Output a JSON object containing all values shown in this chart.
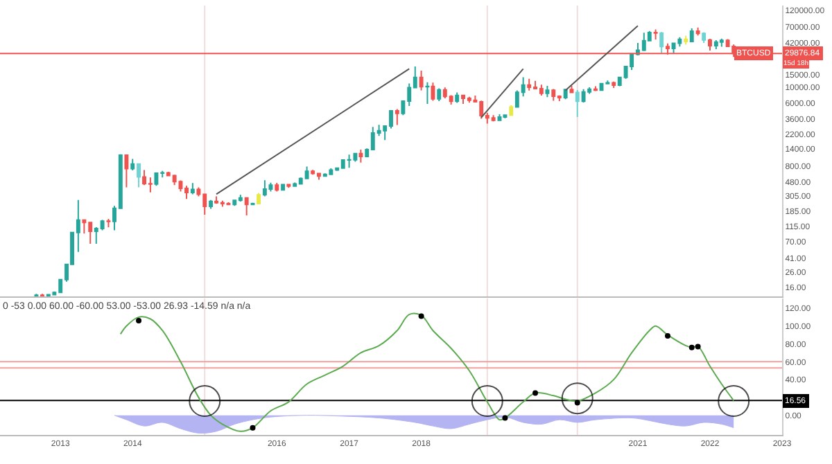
{
  "chart_data": [
    {
      "type": "candlestick",
      "tick_labels": "y",
      "log": "y",
      "xlim": [
        "2012-03",
        "2023-01"
      ],
      "ylim": [
        11.8,
        140000
      ],
      "yticks": [
        {
          "value": 16,
          "label": "16.00"
        },
        {
          "value": 26,
          "label": "26.00"
        },
        {
          "value": 41,
          "label": "41.00"
        },
        {
          "value": 70,
          "label": "70.00"
        },
        {
          "value": 115,
          "label": "115.00"
        },
        {
          "value": 185,
          "label": "185.00"
        },
        {
          "value": 305,
          "label": "305.00"
        },
        {
          "value": 480,
          "label": "480.00"
        },
        {
          "value": 800,
          "label": "800.00"
        },
        {
          "value": 1400,
          "label": "1400.00"
        },
        {
          "value": 2200,
          "label": "2200.00"
        },
        {
          "value": 3600,
          "label": "3600.00"
        },
        {
          "value": 6000,
          "label": "6000.00"
        },
        {
          "value": 10000,
          "label": "10000.00"
        },
        {
          "value": 15000,
          "label": "15000.00"
        },
        {
          "value": 42000,
          "label": "42000.00"
        },
        {
          "value": 70000,
          "label": "70000.00"
        },
        {
          "value": 120000,
          "label": "120000.00"
        }
      ],
      "x": [
        "2012-09",
        "2012-10",
        "2012-11",
        "2012-12",
        "2013-01",
        "2013-02",
        "2013-03",
        "2013-04",
        "2013-05",
        "2013-06",
        "2013-07",
        "2013-08",
        "2013-09",
        "2013-10",
        "2013-11",
        "2013-12",
        "2014-01",
        "2014-02",
        "2014-03",
        "2014-04",
        "2014-05",
        "2014-06",
        "2014-07",
        "2014-08",
        "2014-09",
        "2014-10",
        "2014-11",
        "2014-12",
        "2015-01",
        "2015-02",
        "2015-03",
        "2015-04",
        "2015-05",
        "2015-06",
        "2015-07",
        "2015-08",
        "2015-09",
        "2015-10",
        "2015-11",
        "2015-12",
        "2016-01",
        "2016-02",
        "2016-03",
        "2016-04",
        "2016-05",
        "2016-06",
        "2016-07",
        "2016-08",
        "2016-09",
        "2016-10",
        "2016-11",
        "2016-12",
        "2017-01",
        "2017-02",
        "2017-03",
        "2017-04",
        "2017-05",
        "2017-06",
        "2017-07",
        "2017-08",
        "2017-09",
        "2017-10",
        "2017-11",
        "2017-12",
        "2018-01",
        "2018-02",
        "2018-03",
        "2018-04",
        "2018-05",
        "2018-06",
        "2018-07",
        "2018-08",
        "2018-09",
        "2018-10",
        "2018-11",
        "2018-12",
        "2019-01",
        "2019-02",
        "2019-03",
        "2019-04",
        "2019-05",
        "2019-06",
        "2019-07",
        "2019-08",
        "2019-09",
        "2019-10",
        "2019-11",
        "2019-12",
        "2020-01",
        "2020-02",
        "2020-03",
        "2020-04",
        "2020-05",
        "2020-06",
        "2020-07",
        "2020-08",
        "2020-09",
        "2020-10",
        "2020-11",
        "2020-12",
        "2021-01",
        "2021-02",
        "2021-03",
        "2021-04",
        "2021-05",
        "2021-06",
        "2021-07",
        "2021-08",
        "2021-09",
        "2021-10",
        "2021-11",
        "2021-12",
        "2022-01",
        "2022-02",
        "2022-03",
        "2022-04",
        "2022-05"
      ],
      "ohlc": [
        [
          10.2,
          12.9,
          10.1,
          12.4
        ],
        [
          12.4,
          12.9,
          10.5,
          11.2
        ],
        [
          11.2,
          12.6,
          10.4,
          12.6
        ],
        [
          12.6,
          13.9,
          12.5,
          13.5
        ],
        [
          13.5,
          20.4,
          13.2,
          20.4
        ],
        [
          20.4,
          33.4,
          19.1,
          33.4
        ],
        [
          33.4,
          95,
          33,
          93
        ],
        [
          93,
          266,
          50,
          139
        ],
        [
          139,
          140,
          90,
          129
        ],
        [
          129,
          130,
          65,
          97
        ],
        [
          97,
          111,
          65,
          106
        ],
        [
          106,
          140,
          100,
          135
        ],
        [
          135,
          145,
          110,
          133
        ],
        [
          133,
          220,
          100,
          204
        ],
        [
          204,
          1160,
          203,
          1128
        ],
        [
          1128,
          1150,
          400,
          730
        ],
        [
          730,
          1000,
          690,
          850
        ],
        [
          850,
          850,
          400,
          560
        ],
        [
          560,
          700,
          430,
          450
        ],
        [
          450,
          550,
          340,
          445
        ],
        [
          445,
          630,
          420,
          630
        ],
        [
          630,
          680,
          550,
          640
        ],
        [
          640,
          660,
          570,
          585
        ],
        [
          585,
          600,
          430,
          480
        ],
        [
          480,
          500,
          350,
          387
        ],
        [
          387,
          420,
          275,
          338
        ],
        [
          338,
          460,
          320,
          375
        ],
        [
          375,
          400,
          300,
          320
        ],
        [
          320,
          320,
          166,
          217
        ],
        [
          217,
          266,
          200,
          254
        ],
        [
          254,
          300,
          235,
          244
        ],
        [
          244,
          260,
          214,
          236
        ],
        [
          236,
          247,
          225,
          230
        ],
        [
          230,
          268,
          220,
          263
        ],
        [
          263,
          315,
          253,
          284
        ],
        [
          284,
          286,
          162,
          230
        ],
        [
          230,
          244,
          225,
          236
        ],
        [
          236,
          332,
          236,
          314
        ],
        [
          314,
          503,
          300,
          378
        ],
        [
          378,
          466,
          350,
          430
        ],
        [
          430,
          462,
          350,
          368
        ],
        [
          368,
          448,
          366,
          437
        ],
        [
          437,
          440,
          394,
          416
        ],
        [
          416,
          467,
          413,
          448
        ],
        [
          448,
          550,
          440,
          531
        ],
        [
          531,
          780,
          525,
          673
        ],
        [
          673,
          704,
          600,
          624
        ],
        [
          624,
          626,
          510,
          574
        ],
        [
          574,
          628,
          570,
          609
        ],
        [
          609,
          740,
          605,
          700
        ],
        [
          700,
          754,
          680,
          742
        ],
        [
          742,
          975,
          740,
          963
        ],
        [
          963,
          1150,
          750,
          970
        ],
        [
          970,
          1210,
          915,
          1190
        ],
        [
          1190,
          1350,
          890,
          1080
        ],
        [
          1080,
          1400,
          1080,
          1350
        ],
        [
          1350,
          2800,
          1340,
          2300
        ],
        [
          2300,
          3000,
          2100,
          2480
        ],
        [
          2480,
          2930,
          1830,
          2875
        ],
        [
          2875,
          4750,
          2670,
          4700
        ],
        [
          4700,
          4980,
          2980,
          4340
        ],
        [
          4340,
          6470,
          4100,
          6450
        ],
        [
          6450,
          11400,
          5500,
          9950
        ],
        [
          9950,
          19700,
          9800,
          13850
        ],
        [
          13850,
          17200,
          9100,
          10220
        ],
        [
          10220,
          11800,
          5900,
          10320
        ],
        [
          10320,
          11700,
          6500,
          6920
        ],
        [
          6920,
          9750,
          6450,
          9240
        ],
        [
          9240,
          10000,
          7050,
          7490
        ],
        [
          7490,
          7770,
          5750,
          6390
        ],
        [
          6390,
          8500,
          6100,
          7730
        ],
        [
          7730,
          7760,
          5880,
          7020
        ],
        [
          7020,
          7410,
          6110,
          6630
        ],
        [
          6630,
          7680,
          6200,
          6310
        ],
        [
          6310,
          6550,
          3650,
          4020
        ],
        [
          4020,
          4400,
          3120,
          3740
        ],
        [
          3740,
          4100,
          3350,
          3460
        ],
        [
          3460,
          4200,
          3380,
          3850
        ],
        [
          3850,
          4150,
          3700,
          4100
        ],
        [
          4100,
          5640,
          4050,
          5320
        ],
        [
          5320,
          9100,
          5300,
          8570
        ],
        [
          8570,
          13880,
          7500,
          10820
        ],
        [
          10820,
          13200,
          9060,
          10080
        ],
        [
          10080,
          12330,
          9400,
          9590
        ],
        [
          9590,
          10950,
          7700,
          8290
        ],
        [
          8290,
          10540,
          7300,
          9150
        ],
        [
          9150,
          9500,
          6500,
          7540
        ],
        [
          7540,
          7750,
          6430,
          7190
        ],
        [
          7190,
          9580,
          6850,
          9350
        ],
        [
          9350,
          10500,
          8450,
          8530
        ],
        [
          8530,
          9190,
          3850,
          6410
        ],
        [
          6410,
          9470,
          6150,
          8630
        ],
        [
          8630,
          10080,
          8120,
          9450
        ],
        [
          9450,
          10400,
          8900,
          9140
        ],
        [
          9140,
          11450,
          8980,
          11330
        ],
        [
          11330,
          12470,
          11100,
          11650
        ],
        [
          11650,
          12090,
          9850,
          10780
        ],
        [
          10780,
          14100,
          10370,
          13800
        ],
        [
          13800,
          19900,
          13200,
          19700
        ],
        [
          19700,
          29300,
          17600,
          28990
        ],
        [
          28990,
          41950,
          28130,
          33110
        ],
        [
          33110,
          58350,
          32300,
          45140
        ],
        [
          45140,
          61780,
          45000,
          58800
        ],
        [
          58800,
          64850,
          47000,
          57700
        ],
        [
          57700,
          59500,
          30000,
          37300
        ],
        [
          37300,
          41300,
          28800,
          35040
        ],
        [
          35040,
          42300,
          29300,
          41460
        ],
        [
          41460,
          50500,
          37300,
          47100
        ],
        [
          47100,
          52900,
          39600,
          43790
        ],
        [
          43790,
          67000,
          43300,
          61300
        ],
        [
          61300,
          69000,
          53250,
          56950
        ],
        [
          56950,
          59100,
          42000,
          46200
        ],
        [
          46200,
          48000,
          32900,
          38480
        ],
        [
          38480,
          45800,
          34300,
          43160
        ],
        [
          43160,
          48200,
          37200,
          45510
        ],
        [
          45510,
          47440,
          37600,
          37630
        ],
        [
          37630,
          40000,
          26700,
          29876.84
        ]
      ],
      "colors": [
        "#26a69a",
        "#ef5350",
        "#26a69a",
        "#26a69a",
        "#26a69a",
        "#26a69a",
        "#26a69a",
        "#26a69a",
        "#ef5350",
        "#ef5350",
        "#26a69a",
        "#26a69a",
        "#ef5350",
        "#26a69a",
        "#26a69a",
        "#ef5350",
        "#26a69a",
        "#6fd3d3",
        "#ef5350",
        "#ef5350",
        "#26a69a",
        "#26a69a",
        "#ef5350",
        "#ef5350",
        "#ef5350",
        "#ef5350",
        "#26a69a",
        "#ef5350",
        "#ef5350",
        "#26a69a",
        "#ef5350",
        "#ef5350",
        "#ef5350",
        "#26a69a",
        "#26a69a",
        "#ef5350",
        "#26a69a",
        "#e8e84a",
        "#26a69a",
        "#26a69a",
        "#ef5350",
        "#26a69a",
        "#ef5350",
        "#26a69a",
        "#26a69a",
        "#26a69a",
        "#ef5350",
        "#ef5350",
        "#26a69a",
        "#26a69a",
        "#26a69a",
        "#26a69a",
        "#26a69a",
        "#26a69a",
        "#ef5350",
        "#26a69a",
        "#26a69a",
        "#26a69a",
        "#26a69a",
        "#26a69a",
        "#ef5350",
        "#26a69a",
        "#26a69a",
        "#26a69a",
        "#ef5350",
        "#26a69a",
        "#ef5350",
        "#26a69a",
        "#ef5350",
        "#ef5350",
        "#26a69a",
        "#ef5350",
        "#ef5350",
        "#ef5350",
        "#ef5350",
        "#ef5350",
        "#ef5350",
        "#26a69a",
        "#26a69a",
        "#e8e84a",
        "#26a69a",
        "#26a69a",
        "#ef5350",
        "#ef5350",
        "#ef5350",
        "#26a69a",
        "#ef5350",
        "#ef5350",
        "#26a69a",
        "#ef5350",
        "#6fd3d3",
        "#26a69a",
        "#26a69a",
        "#ef5350",
        "#26a69a",
        "#26a69a",
        "#ef5350",
        "#26a69a",
        "#26a69a",
        "#26a69a",
        "#26a69a",
        "#26a69a",
        "#26a69a",
        "#ef5350",
        "#6fd3d3",
        "#ef5350",
        "#26a69a",
        "#26a69a",
        "#e8e84a",
        "#26a69a",
        "#ef5350",
        "#6fd3d3",
        "#ef5350",
        "#26a69a",
        "#26a69a",
        "#ef5350",
        "#ef5350"
      ],
      "series": [
        {
          "type": "line",
          "color": "#555555",
          "x": [
            "2015-03",
            "2017-11"
          ],
          "values": [
            321,
            18200
          ]
        },
        {
          "type": "line",
          "color": "#555555",
          "x": [
            "2018-11",
            "2019-06"
          ],
          "values": [
            3800,
            18200
          ]
        },
        {
          "type": "line",
          "color": "#555555",
          "x": [
            "2020-01",
            "2021-01"
          ],
          "values": [
            9100,
            73000
          ]
        }
      ],
      "ref_lines": [
        {
          "axis": "y",
          "value": 29876.84,
          "label": "29876.84",
          "color": "#ef5350"
        },
        {
          "axis": "x",
          "value": "2015-01",
          "color": "#f0dede"
        },
        {
          "axis": "x",
          "value": "2018-12",
          "color": "#f0dede"
        },
        {
          "axis": "x",
          "value": "2020-03",
          "color": "#f0dede"
        }
      ],
      "annotations": [
        "BTCUSD",
        "15d 18h"
      ]
    },
    {
      "type": "line",
      "xlim": [
        "2012-03",
        "2023-01"
      ],
      "ylim": [
        -22,
        131
      ],
      "xticks": [
        {
          "value": "2013-01",
          "label": "2013"
        },
        {
          "value": "2014-01",
          "label": "2014"
        },
        {
          "value": "2016-01",
          "label": "2016"
        },
        {
          "value": "2017-01",
          "label": "2017"
        },
        {
          "value": "2018-01",
          "label": "2018"
        },
        {
          "value": "2021-01",
          "label": "2021"
        },
        {
          "value": "2022-01",
          "label": "2022"
        },
        {
          "value": "2023-01",
          "label": "2023"
        }
      ],
      "yticks": [
        {
          "value": 0,
          "label": "0.00"
        },
        {
          "value": 40,
          "label": "40.00"
        },
        {
          "value": 60,
          "label": "60.00"
        },
        {
          "value": 80,
          "label": "80.00"
        },
        {
          "value": 100,
          "label": "100.00"
        },
        {
          "value": 120,
          "label": "120.00"
        }
      ],
      "series": [
        {
          "type": "area",
          "color": "#b4b4f2",
          "x": [
            "2013-10",
            "2013-12",
            "2014-03",
            "2014-06",
            "2014-09",
            "2014-12",
            "2015-03",
            "2015-06",
            "2015-09",
            "2015-12",
            "2016-06",
            "2016-12",
            "2017-06",
            "2017-12",
            "2018-03",
            "2018-06",
            "2018-09",
            "2018-12",
            "2019-03",
            "2019-06",
            "2019-09",
            "2019-12",
            "2020-03",
            "2020-06",
            "2020-12",
            "2021-03",
            "2021-06",
            "2021-09",
            "2021-12",
            "2022-03",
            "2022-05"
          ],
          "values": [
            0,
            -5,
            -12,
            -8,
            -15,
            -20,
            -18,
            -10,
            -5,
            -2,
            0,
            -1,
            -3,
            -8,
            -12,
            -15,
            -10,
            -5,
            -2,
            -8,
            -10,
            -5,
            -8,
            -5,
            -3,
            -6,
            -10,
            -12,
            -8,
            -10,
            -14
          ]
        },
        {
          "type": "line",
          "color": "#5cab50",
          "x": [
            "2013-11",
            "2013-12",
            "2014-02",
            "2014-04",
            "2014-06",
            "2014-09",
            "2014-12",
            "2015-02",
            "2015-04",
            "2015-07",
            "2015-09",
            "2015-12",
            "2016-03",
            "2016-06",
            "2016-09",
            "2016-12",
            "2017-03",
            "2017-06",
            "2017-09",
            "2017-11",
            "2018-01",
            "2018-03",
            "2018-06",
            "2018-09",
            "2018-12",
            "2019-02",
            "2019-03",
            "2019-06",
            "2019-08",
            "2019-11",
            "2020-01",
            "2020-03",
            "2020-06",
            "2020-09",
            "2020-12",
            "2021-03",
            "2021-04",
            "2021-06",
            "2021-09",
            "2021-10",
            "2021-11",
            "2022-01",
            "2022-03",
            "2022-05"
          ],
          "values": [
            91,
            100,
            110,
            108,
            95,
            60,
            20,
            0,
            -10,
            -18,
            -14,
            5,
            15,
            35,
            45,
            55,
            70,
            78,
            95,
            113,
            112,
            95,
            75,
            50,
            15,
            -5,
            -3,
            15,
            25,
            22,
            18,
            16,
            25,
            40,
            70,
            95,
            100,
            90,
            78,
            76,
            77,
            55,
            35,
            16.56
          ]
        },
        {
          "type": "scatter",
          "marker": "circle",
          "color": "#000000",
          "x": [
            "2014-02",
            "2015-09",
            "2018-01",
            "2019-03",
            "2019-08",
            "2020-03",
            "2021-06",
            "2021-10",
            "2021-11"
          ],
          "values": [
            106,
            -14,
            111,
            -3,
            25,
            14,
            89,
            76,
            77
          ]
        },
        {
          "type": "bubble",
          "color": "#000000",
          "x": [
            "2015-01",
            "2018-12",
            "2020-03",
            "2022-05"
          ],
          "values": [
            16,
            16,
            19,
            16
          ],
          "sizes": [
            1,
            1,
            1,
            1
          ]
        }
      ],
      "ref_lines": [
        {
          "axis": "y",
          "value": 60,
          "color": "#f2a0a0"
        },
        {
          "axis": "y",
          "value": 53,
          "color": "#f2a0a0"
        },
        {
          "axis": "y",
          "value": 16.56,
          "label": "16.56",
          "color": "#000000"
        },
        {
          "axis": "x",
          "value": "2015-01",
          "color": "#f0dede"
        },
        {
          "axis": "x",
          "value": "2018-12",
          "color": "#f0dede"
        },
        {
          "axis": "x",
          "value": "2020-03",
          "color": "#f0dede"
        }
      ],
      "annotations": [
        "0 -53 0.00 60.00 -60.00 53.00 -53.00 26.93 -14.59 n/a n/a"
      ]
    }
  ]
}
